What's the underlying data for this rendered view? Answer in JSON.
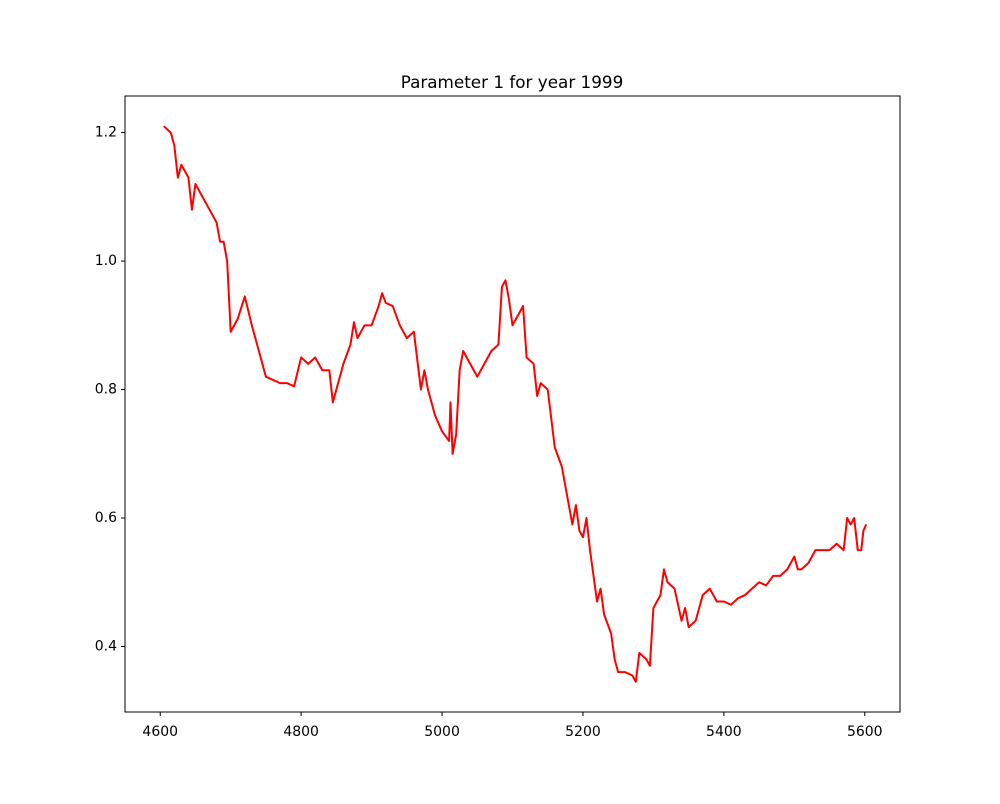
{
  "chart_data": {
    "type": "line",
    "title": "Parameter 1 for year 1999",
    "x": [
      4605,
      4615,
      4620,
      4625,
      4630,
      4640,
      4645,
      4650,
      4660,
      4670,
      4680,
      4685,
      4690,
      4695,
      4700,
      4710,
      4720,
      4730,
      4740,
      4750,
      4760,
      4770,
      4780,
      4790,
      4800,
      4810,
      4820,
      4830,
      4840,
      4845,
      4850,
      4860,
      4870,
      4875,
      4880,
      4890,
      4900,
      4910,
      4915,
      4920,
      4930,
      4940,
      4950,
      4960,
      4970,
      4975,
      4980,
      4990,
      5000,
      5010,
      5012,
      5015,
      5020,
      5025,
      5030,
      5040,
      5050,
      5060,
      5070,
      5080,
      5085,
      5090,
      5095,
      5100,
      5110,
      5115,
      5120,
      5130,
      5135,
      5140,
      5150,
      5160,
      5170,
      5180,
      5185,
      5190,
      5195,
      5200,
      5205,
      5210,
      5220,
      5225,
      5230,
      5240,
      5245,
      5250,
      5260,
      5270,
      5275,
      5280,
      5290,
      5295,
      5300,
      5305,
      5310,
      5315,
      5320,
      5330,
      5340,
      5345,
      5350,
      5360,
      5370,
      5380,
      5390,
      5400,
      5410,
      5420,
      5430,
      5440,
      5450,
      5460,
      5470,
      5480,
      5490,
      5500,
      5505,
      5510,
      5520,
      5530,
      5540,
      5550,
      5560,
      5570,
      5575,
      5580,
      5585,
      5590,
      5595,
      5598,
      5602
    ],
    "series": [
      {
        "name": "Parameter 1",
        "color": "#ff0000",
        "values": [
          1.21,
          1.2,
          1.18,
          1.13,
          1.15,
          1.13,
          1.08,
          1.12,
          1.1,
          1.08,
          1.06,
          1.03,
          1.03,
          1.0,
          0.89,
          0.91,
          0.945,
          0.9,
          0.86,
          0.82,
          0.815,
          0.81,
          0.81,
          0.805,
          0.85,
          0.84,
          0.85,
          0.83,
          0.83,
          0.78,
          0.8,
          0.84,
          0.87,
          0.905,
          0.88,
          0.9,
          0.9,
          0.93,
          0.95,
          0.935,
          0.93,
          0.9,
          0.88,
          0.89,
          0.8,
          0.83,
          0.8,
          0.76,
          0.735,
          0.72,
          0.78,
          0.7,
          0.73,
          0.83,
          0.86,
          0.84,
          0.82,
          0.84,
          0.86,
          0.87,
          0.96,
          0.97,
          0.94,
          0.9,
          0.92,
          0.93,
          0.85,
          0.84,
          0.79,
          0.81,
          0.8,
          0.71,
          0.68,
          0.62,
          0.59,
          0.62,
          0.58,
          0.57,
          0.6,
          0.55,
          0.47,
          0.49,
          0.45,
          0.42,
          0.38,
          0.36,
          0.36,
          0.355,
          0.345,
          0.39,
          0.38,
          0.37,
          0.46,
          0.47,
          0.48,
          0.52,
          0.5,
          0.49,
          0.44,
          0.46,
          0.43,
          0.44,
          0.48,
          0.49,
          0.47,
          0.47,
          0.465,
          0.475,
          0.48,
          0.49,
          0.5,
          0.495,
          0.51,
          0.51,
          0.52,
          0.54,
          0.52,
          0.52,
          0.53,
          0.55,
          0.55,
          0.55,
          0.56,
          0.55,
          0.6,
          0.59,
          0.6,
          0.55,
          0.55,
          0.58,
          0.59
        ]
      }
    ],
    "xlim": [
      4550,
      5650
    ],
    "ylim": [
      0.298,
      1.257
    ],
    "xticks": [
      4600,
      4800,
      5000,
      5200,
      5400,
      5600
    ],
    "yticks": [
      0.4,
      0.6,
      0.8,
      1.0,
      1.2
    ],
    "grid": false
  }
}
